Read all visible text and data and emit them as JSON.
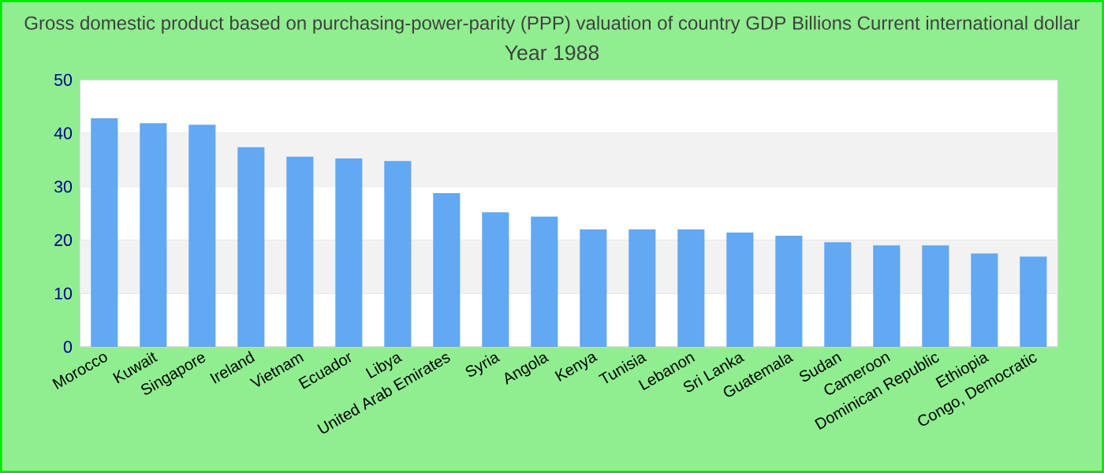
{
  "chart_data": {
    "type": "bar",
    "title": "Gross domestic product based on purchasing-power-parity (PPP) valuation of country GDP Billions Current international dollar",
    "subtitle": "Year 1988",
    "categories": [
      "Morocco",
      "Kuwait",
      "Singapore",
      "Ireland",
      "Vietnam",
      "Ecuador",
      "Libya",
      "United Arab Emirates",
      "Syria",
      "Angola",
      "Kenya",
      "Tunisia",
      "Lebanon",
      "Sri Lanka",
      "Guatemala",
      "Sudan",
      "Cameroon",
      "Dominican Republic",
      "Ethiopia",
      "Congo, Democratic"
    ],
    "values": [
      42.8,
      41.9,
      41.6,
      37.4,
      35.6,
      35.3,
      34.8,
      28.8,
      25.2,
      24.4,
      22.0,
      22.0,
      22.0,
      21.4,
      20.8,
      19.6,
      19.0,
      19.0,
      17.5,
      16.9
    ],
    "color": "#62a8f2",
    "ylim": [
      0,
      50
    ],
    "yticks": [
      0,
      10,
      20,
      30,
      40,
      50
    ],
    "grid": "y"
  }
}
